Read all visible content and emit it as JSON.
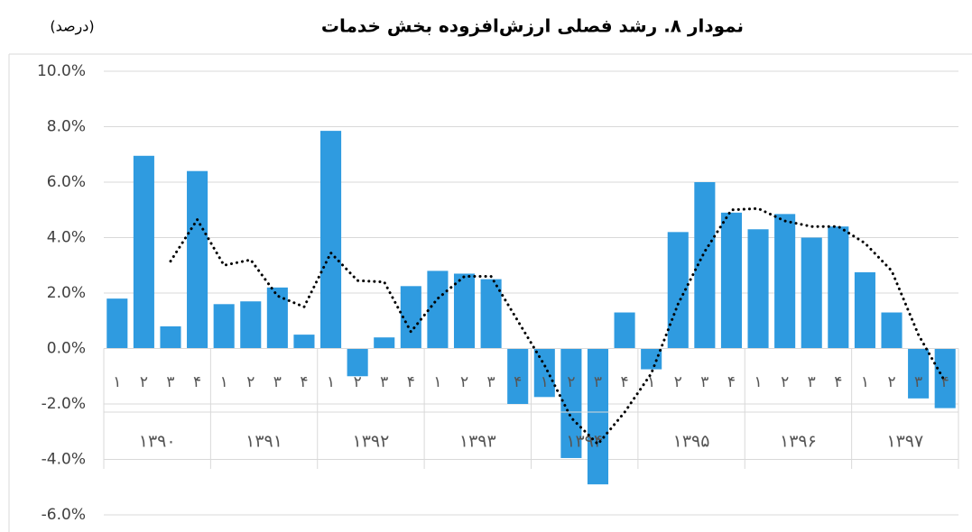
{
  "chart_data": {
    "type": "bar",
    "title": "نمودار ۸. رشد فصلی ارزش‌افزوده بخش خدمات",
    "unit": "(درصد)",
    "categories": [
      "۱",
      "۲",
      "۳",
      "۴",
      "۱",
      "۲",
      "۳",
      "۴",
      "۱",
      "۲",
      "۳",
      "۴",
      "۱",
      "۲",
      "۳",
      "۴",
      "۱",
      "۲",
      "۳",
      "۴",
      "۱",
      "۲",
      "۳",
      "۴",
      "۱",
      "۲",
      "۳",
      "۴",
      "۱",
      "۲",
      "۳",
      "۴"
    ],
    "groups": [
      "۱۳۹۰",
      "۱۳۹۱",
      "۱۳۹۲",
      "۱۳۹۳",
      "۱۳۹۴",
      "۱۳۹۵",
      "۱۳۹۶",
      "۱۳۹۷"
    ],
    "series": [
      {
        "type": "bar",
        "color": "#2f9be0",
        "values": [
          1.8,
          6.95,
          0.8,
          6.4,
          1.6,
          1.7,
          2.2,
          0.5,
          7.85,
          -1.0,
          0.4,
          2.25,
          2.8,
          2.7,
          2.5,
          -2.0,
          -1.75,
          -3.95,
          -4.9,
          1.3,
          -0.75,
          4.2,
          6.0,
          4.9,
          4.3,
          4.85,
          4.0,
          4.4,
          2.75,
          1.3,
          -1.8,
          -2.15
        ]
      },
      {
        "type": "line",
        "color": "#000000",
        "style": "dotted",
        "values": [
          null,
          null,
          3.15,
          4.65,
          3.0,
          3.2,
          1.9,
          1.5,
          3.45,
          2.45,
          2.4,
          0.6,
          1.8,
          2.6,
          2.6,
          1.0,
          -0.6,
          -2.5,
          -3.45,
          -2.3,
          -0.9,
          1.6,
          3.5,
          5.0,
          5.05,
          4.6,
          4.4,
          4.4,
          3.8,
          2.8,
          0.5,
          -1.2
        ]
      }
    ],
    "ylim": [
      -6,
      10
    ],
    "yticks": [
      {
        "value": -6,
        "label": "-6.0%"
      },
      {
        "value": -4,
        "label": "-4.0%"
      },
      {
        "value": -2,
        "label": "-2.0%"
      },
      {
        "value": 0,
        "label": "0.0%"
      },
      {
        "value": 2,
        "label": "2.0%"
      },
      {
        "value": 4,
        "label": "4.0%"
      },
      {
        "value": 6,
        "label": "6.0%"
      },
      {
        "value": 8,
        "label": "8.0%"
      },
      {
        "value": 10,
        "label": "10.0%"
      }
    ],
    "grid": true
  }
}
